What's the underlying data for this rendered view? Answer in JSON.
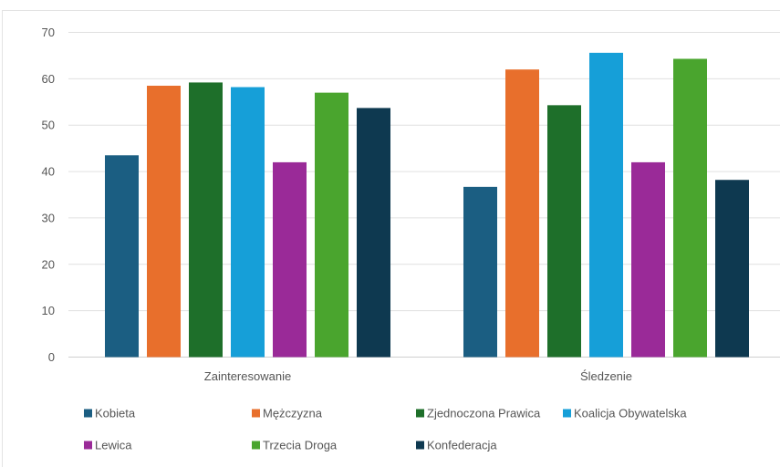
{
  "chart_data": {
    "type": "bar",
    "categories": [
      "Zainteresowanie",
      "Śledzenie"
    ],
    "series": [
      {
        "name": "Kobieta",
        "values": [
          43.5,
          36.7
        ],
        "color": "#1b5e82"
      },
      {
        "name": "Mężczyzna",
        "values": [
          58.5,
          62.0
        ],
        "color": "#e86f2c"
      },
      {
        "name": "Zjednoczona Prawica",
        "values": [
          59.2,
          54.3
        ],
        "color": "#1e6f2a"
      },
      {
        "name": "Koalicja Obywatelska",
        "values": [
          58.2,
          65.6
        ],
        "color": "#169fd8"
      },
      {
        "name": "Lewica",
        "values": [
          42.0,
          42.0
        ],
        "color": "#9a2a98"
      },
      {
        "name": "Trzecia Droga",
        "values": [
          57.0,
          64.3
        ],
        "color": "#4aa52e"
      },
      {
        "name": "Konfederacja",
        "values": [
          53.7,
          38.2
        ],
        "color": "#0e3950"
      }
    ],
    "title": "",
    "xlabel": "",
    "ylabel": "",
    "ylim": [
      0,
      70
    ],
    "yticks": [
      "0",
      "10",
      "20",
      "30",
      "40",
      "50",
      "60",
      "70"
    ],
    "grid": true,
    "legend_position": "bottom"
  }
}
